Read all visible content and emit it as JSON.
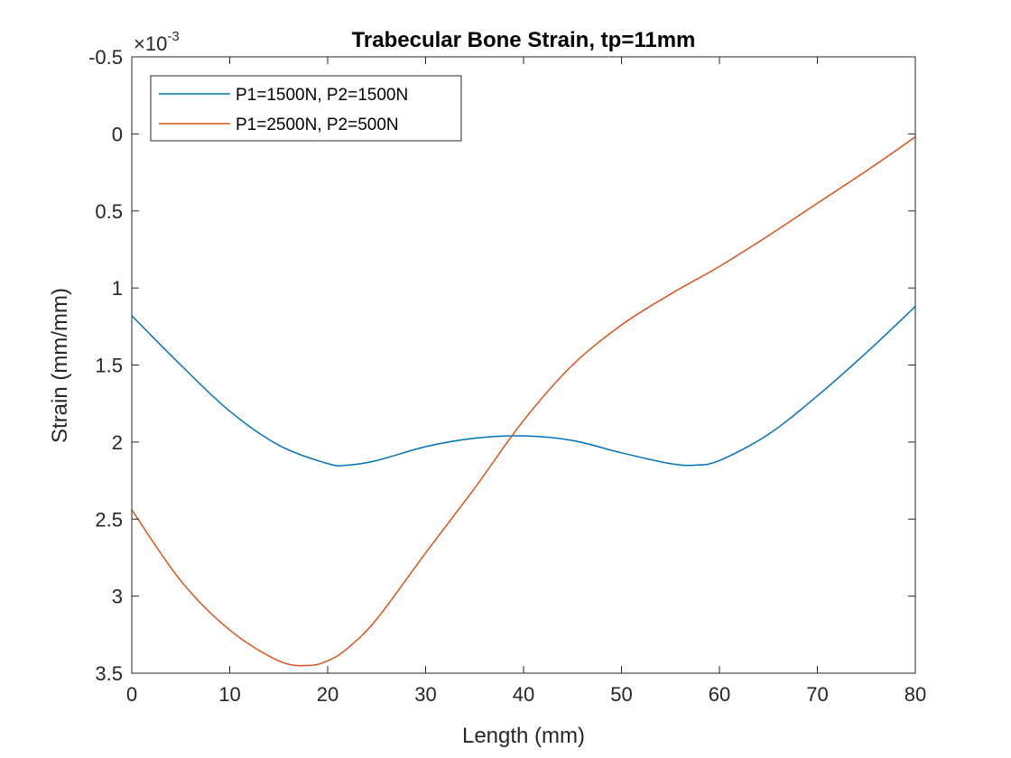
{
  "chart_data": {
    "type": "line",
    "title": "Trabecular Bone Strain, tp=11mm",
    "xlabel": "Length (mm)",
    "ylabel": "Strain (mm/mm)",
    "y_exponent_base": "×10",
    "y_exponent_power": "-3",
    "xlim": [
      0,
      80
    ],
    "ylim": [
      -0.5,
      3.5
    ],
    "y_direction": "reversed",
    "xticks": [
      0,
      10,
      20,
      30,
      40,
      50,
      60,
      70,
      80
    ],
    "xtick_labels": [
      "0",
      "10",
      "20",
      "30",
      "40",
      "50",
      "60",
      "70",
      "80"
    ],
    "yticks": [
      -0.5,
      0,
      0.5,
      1,
      1.5,
      2,
      2.5,
      3,
      3.5
    ],
    "ytick_labels": [
      "-0.5",
      "0",
      "0.5",
      "1",
      "1.5",
      "2",
      "2.5",
      "3",
      "3.5"
    ],
    "grid": false,
    "legend_position": "top-left",
    "series": [
      {
        "name": "P1=1500N, P2=1500N",
        "color": "#0072BD",
        "x": [
          0,
          5,
          10,
          15,
          20,
          22,
          25,
          30,
          35,
          40,
          45,
          50,
          55,
          57.5,
          60,
          65,
          70,
          75,
          80
        ],
        "y": [
          1.18,
          1.5,
          1.8,
          2.02,
          2.14,
          2.15,
          2.12,
          2.03,
          1.975,
          1.96,
          1.99,
          2.07,
          2.14,
          2.15,
          2.12,
          1.95,
          1.7,
          1.42,
          1.12
        ]
      },
      {
        "name": "P1=2500N, P2=500N",
        "color": "#D95319",
        "x": [
          0,
          5,
          10,
          15,
          18,
          20,
          22,
          25,
          30,
          35,
          40,
          45,
          50,
          55,
          60,
          65,
          70,
          75,
          80
        ],
        "y": [
          2.44,
          2.9,
          3.22,
          3.42,
          3.45,
          3.42,
          3.34,
          3.15,
          2.72,
          2.3,
          1.86,
          1.5,
          1.24,
          1.04,
          0.86,
          0.66,
          0.45,
          0.24,
          0.02
        ]
      }
    ]
  }
}
